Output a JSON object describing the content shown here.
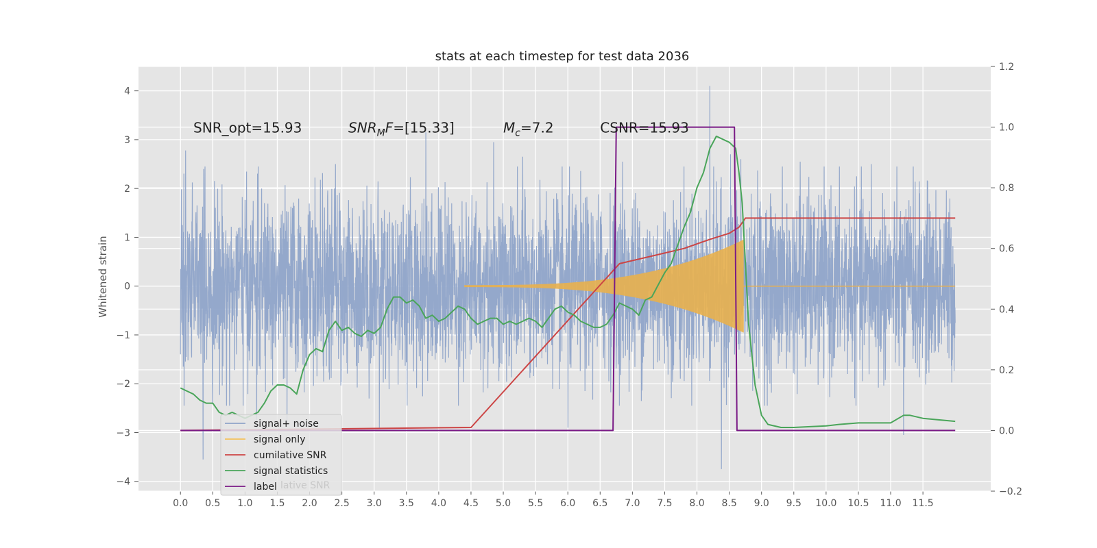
{
  "chart_data": {
    "type": "line",
    "title": "stats at each timestep for test data 2036",
    "ylabel": "Whitened strain",
    "xlim": [
      -0.65,
      12.55
    ],
    "ylim": [
      -4.2,
      4.5
    ],
    "ylim_right": [
      -0.2,
      1.2
    ],
    "x_ticks": [
      "0.0",
      "0.5",
      "1.0",
      "1.5",
      "2.0",
      "2.5",
      "3.0",
      "3.5",
      "4.0",
      "4.5",
      "5.0",
      "5.5",
      "6.0",
      "6.5",
      "7.0",
      "7.5",
      "8.0",
      "8.5",
      "9.0",
      "9.5",
      "10.0",
      "10.5",
      "11.0",
      "11.5"
    ],
    "y_ticks_left": [
      "4",
      "3",
      "2",
      "1",
      "0",
      "−1",
      "−2",
      "−3",
      "−4"
    ],
    "y_ticks_right": [
      "1.2",
      "1.0",
      "0.8",
      "0.6",
      "0.4",
      "0.2",
      "0.0",
      "−0.2"
    ],
    "grid": true,
    "legend_position": "lower-left",
    "annotations": [
      {
        "label": "SNR_opt=15.93",
        "x": 0.2,
        "y": 3.3
      },
      {
        "label": "SNR",
        "sub": "M",
        "suffix": "F=[15.33]",
        "x": 2.6,
        "y": 3.3
      },
      {
        "label": "M",
        "sub": "c",
        "suffix": "=7.2",
        "x": 5.0,
        "y": 3.3
      },
      {
        "label": "CSNR=15.93",
        "x": 6.5,
        "y": 3.3
      }
    ],
    "series": [
      {
        "name": "signal+ noise",
        "axis": "left",
        "color": "#8fa4c9",
        "x_range": [
          0.0,
          12.0
        ],
        "envelope_sigma": 0.9,
        "peaks": [
          [
            0.08,
            2.78
          ],
          [
            0.36,
            2.4
          ],
          [
            1.18,
            -2.9
          ],
          [
            1.65,
            -2.8
          ],
          [
            3.08,
            -2.9
          ],
          [
            3.8,
            3.15
          ],
          [
            4.85,
            2.95
          ],
          [
            5.3,
            2.65
          ],
          [
            6.0,
            -2.9
          ],
          [
            8.2,
            4.1
          ],
          [
            8.38,
            -3.75
          ],
          [
            8.52,
            2.7
          ],
          [
            8.68,
            2.6
          ],
          [
            11.2,
            -3.05
          ],
          [
            11.35,
            2.45
          ],
          [
            0.35,
            -3.55
          ],
          [
            2.4,
            2.5
          ],
          [
            6.85,
            2.55
          ],
          [
            9.6,
            2.55
          ],
          [
            10.7,
            2.5
          ]
        ]
      },
      {
        "name": "signal only",
        "axis": "left",
        "color": "#e8b04e",
        "chirp_start": 4.4,
        "chirp_end": 8.72,
        "amp_start": 0.02,
        "amp_end": 0.95
      },
      {
        "name": "cumilative SNR",
        "axis": "right",
        "color": "#cc4444",
        "x": [
          0.0,
          4.5,
          6.8,
          7.4,
          7.8,
          8.2,
          8.5,
          8.65,
          8.75,
          12.0
        ],
        "y": [
          0.0,
          0.01,
          0.55,
          0.58,
          0.6,
          0.63,
          0.65,
          0.67,
          0.7,
          0.7
        ]
      },
      {
        "name": "signal statistics",
        "axis": "right",
        "color": "#4aa55a",
        "x": [
          0.0,
          0.1,
          0.2,
          0.3,
          0.4,
          0.5,
          0.6,
          0.7,
          0.8,
          0.9,
          1.0,
          1.1,
          1.2,
          1.3,
          1.4,
          1.5,
          1.6,
          1.7,
          1.8,
          1.9,
          2.0,
          2.1,
          2.2,
          2.3,
          2.4,
          2.5,
          2.6,
          2.7,
          2.8,
          2.9,
          3.0,
          3.1,
          3.2,
          3.3,
          3.4,
          3.5,
          3.6,
          3.7,
          3.8,
          3.9,
          4.0,
          4.1,
          4.2,
          4.3,
          4.4,
          4.5,
          4.6,
          4.7,
          4.8,
          4.9,
          5.0,
          5.1,
          5.2,
          5.3,
          5.4,
          5.5,
          5.6,
          5.7,
          5.8,
          5.9,
          6.0,
          6.1,
          6.2,
          6.3,
          6.4,
          6.5,
          6.6,
          6.7,
          6.8,
          6.9,
          7.0,
          7.1,
          7.2,
          7.3,
          7.4,
          7.5,
          7.6,
          7.7,
          7.8,
          7.9,
          8.0,
          8.1,
          8.2,
          8.3,
          8.4,
          8.5,
          8.6,
          8.65,
          8.7,
          8.75,
          8.8,
          8.9,
          9.0,
          9.1,
          9.3,
          9.5,
          10.0,
          10.2,
          10.5,
          11.0,
          11.2,
          11.3,
          11.5,
          12.0
        ],
        "y": [
          0.14,
          0.13,
          0.12,
          0.1,
          0.09,
          0.09,
          0.06,
          0.05,
          0.06,
          0.05,
          0.04,
          0.05,
          0.06,
          0.09,
          0.13,
          0.15,
          0.15,
          0.14,
          0.12,
          0.2,
          0.25,
          0.27,
          0.26,
          0.33,
          0.36,
          0.33,
          0.34,
          0.32,
          0.31,
          0.33,
          0.32,
          0.34,
          0.4,
          0.44,
          0.44,
          0.42,
          0.43,
          0.41,
          0.37,
          0.38,
          0.36,
          0.37,
          0.39,
          0.41,
          0.4,
          0.37,
          0.35,
          0.36,
          0.37,
          0.37,
          0.35,
          0.36,
          0.35,
          0.36,
          0.37,
          0.36,
          0.34,
          0.37,
          0.4,
          0.41,
          0.39,
          0.38,
          0.36,
          0.35,
          0.34,
          0.34,
          0.35,
          0.38,
          0.42,
          0.41,
          0.4,
          0.38,
          0.43,
          0.44,
          0.48,
          0.52,
          0.55,
          0.61,
          0.67,
          0.72,
          0.8,
          0.85,
          0.93,
          0.97,
          0.96,
          0.95,
          0.93,
          0.85,
          0.75,
          0.55,
          0.35,
          0.15,
          0.05,
          0.02,
          0.01,
          0.01,
          0.015,
          0.02,
          0.025,
          0.025,
          0.05,
          0.05,
          0.04,
          0.03
        ]
      },
      {
        "name": "label",
        "axis": "right",
        "color": "#7a1a86",
        "x": [
          0.0,
          6.7,
          6.75,
          8.58,
          8.62,
          12.0
        ],
        "y": [
          0.0,
          0.0,
          1.0,
          1.0,
          0.0,
          0.0
        ]
      }
    ],
    "legend": [
      {
        "name": "signal+ noise",
        "color": "#8fa4c9"
      },
      {
        "name": "signal only",
        "color": "#f3c25b"
      },
      {
        "name": "cumilative SNR",
        "color": "#cc4444"
      },
      {
        "name": "signal statistics",
        "color": "#4aa55a"
      },
      {
        "name": "label",
        "color": "#7a1a86"
      }
    ],
    "legend_ghost_text": "lative SNR"
  }
}
